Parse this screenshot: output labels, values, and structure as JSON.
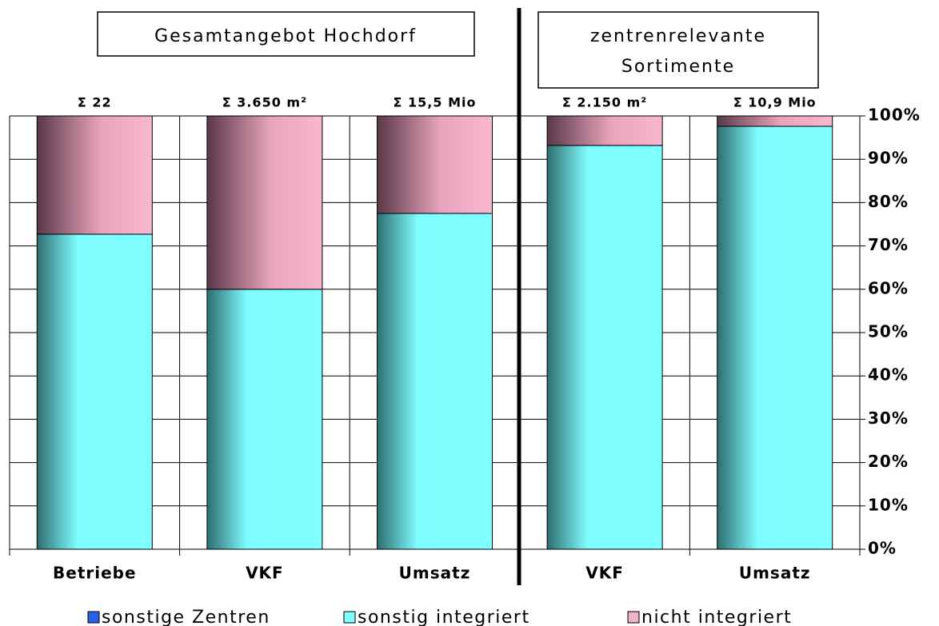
{
  "chart_data": {
    "type": "stacked-bar",
    "section_labels": [
      [
        "Gesamtangebot Hochdorf"
      ],
      [
        "zentrenrelevante",
        "Sortimente"
      ]
    ],
    "categories": [
      "Betriebe",
      "VKF",
      "Umsatz",
      "VKF",
      "Umsatz"
    ],
    "annotations": [
      "Σ 22",
      "Σ 3.650 m²",
      "Σ 15,5 Mio",
      "Σ 2.150 m²",
      "Σ 10,9 Mio"
    ],
    "series": [
      {
        "name": "sonstige Zentren",
        "color": "#2a62e6",
        "values": [
          0,
          0,
          0,
          0,
          0
        ]
      },
      {
        "name": "sonstig integriert",
        "color": "#7fffff",
        "values": [
          72.7,
          60,
          77.5,
          93.2,
          97.6
        ]
      },
      {
        "name": "nicht integriert",
        "color": "#f4b2c8",
        "values": [
          27.3,
          40,
          22.5,
          6.8,
          2.4
        ]
      }
    ],
    "ylim": [
      0,
      100
    ],
    "yticks": [
      {
        "value": 0,
        "label": "0%"
      },
      {
        "value": 10,
        "label": "10%"
      },
      {
        "value": 20,
        "label": "20%"
      },
      {
        "value": 30,
        "label": "30%"
      },
      {
        "value": 40,
        "label": "40%"
      },
      {
        "value": 50,
        "label": "50%"
      },
      {
        "value": 60,
        "label": "60%"
      },
      {
        "value": 70,
        "label": "70%"
      },
      {
        "value": 80,
        "label": "80%"
      },
      {
        "value": 90,
        "label": "90%"
      },
      {
        "value": 100,
        "label": "100%"
      }
    ],
    "grid": true,
    "legend": "bottom"
  }
}
